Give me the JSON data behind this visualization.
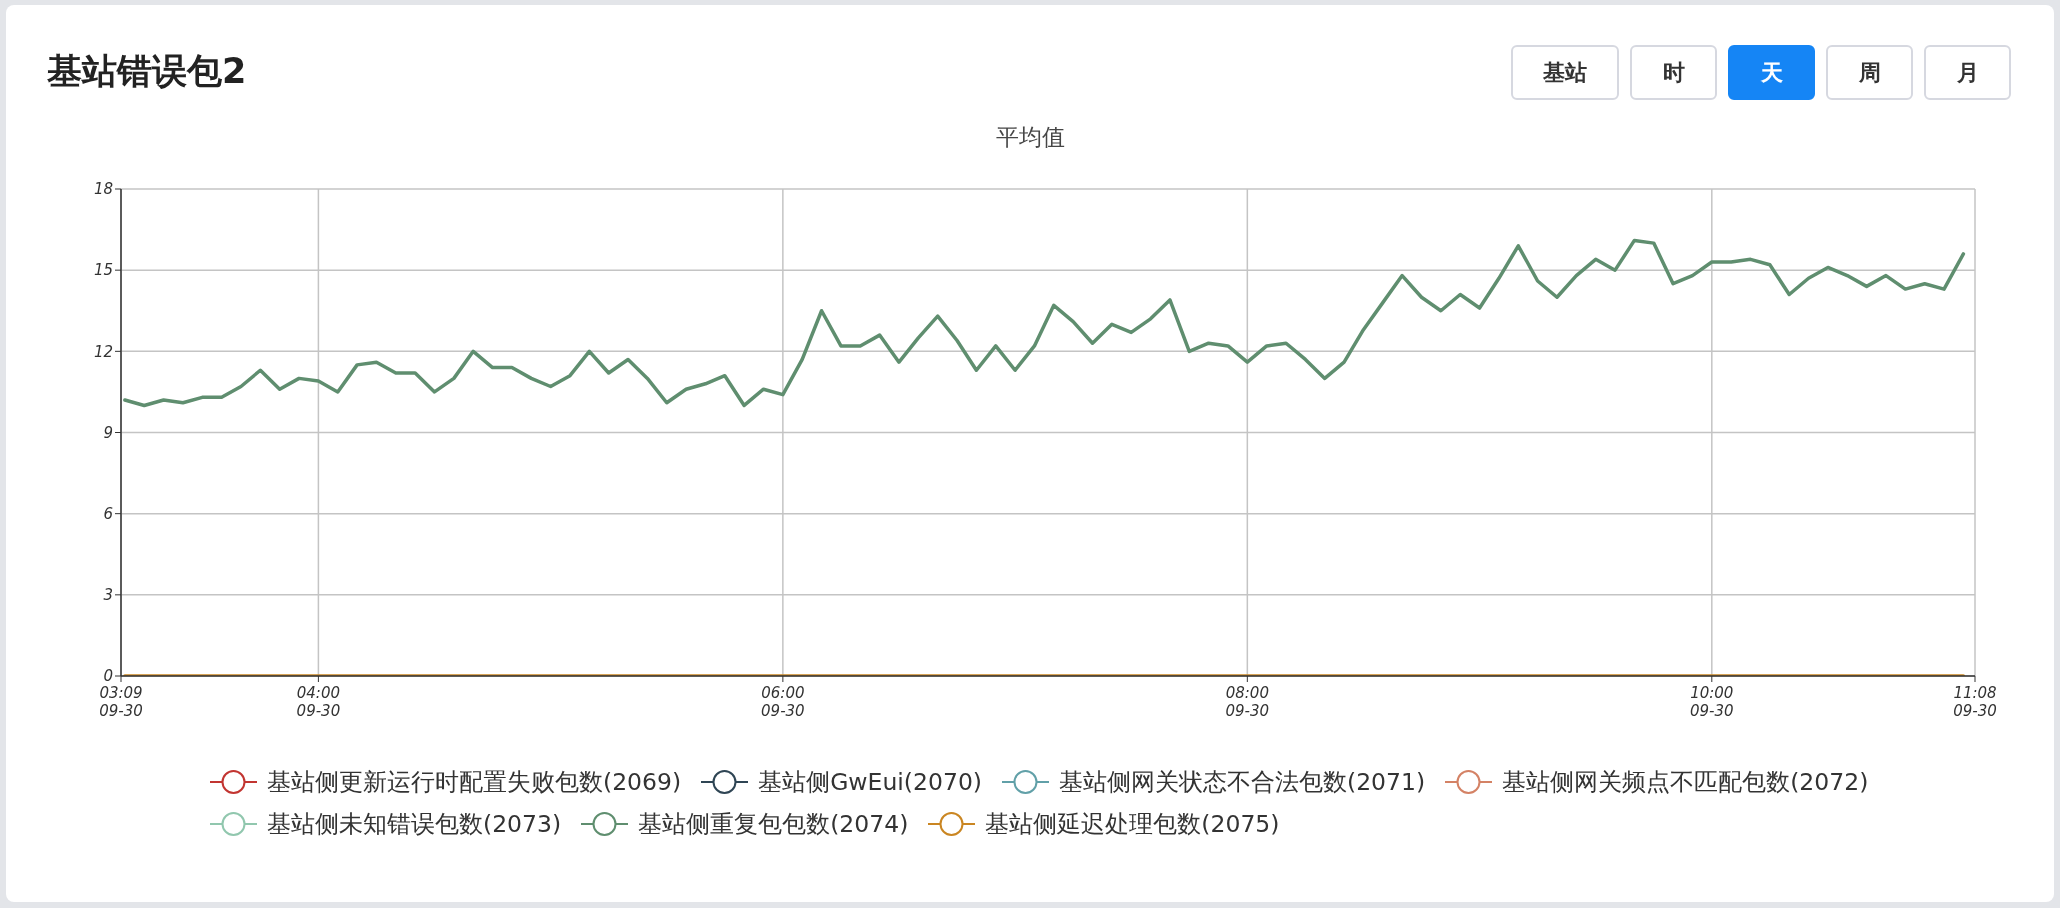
{
  "chart_data": {
    "type": "line",
    "title": "基站错误包2",
    "subtitle": "平均值",
    "annotations": [
      "基站",
      "时",
      "天",
      "周",
      "月"
    ],
    "x": [
      "--09-30T03:10",
      "--09-30T03:15",
      "--09-30T03:20",
      "--09-30T03:25",
      "--09-30T03:30",
      "--09-30T03:35",
      "--09-30T03:40",
      "--09-30T03:45",
      "--09-30T03:50",
      "--09-30T03:55",
      "--09-30T04:00",
      "--09-30T04:05",
      "--09-30T04:10",
      "--09-30T04:15",
      "--09-30T04:20",
      "--09-30T04:25",
      "--09-30T04:30",
      "--09-30T04:35",
      "--09-30T04:40",
      "--09-30T04:45",
      "--09-30T04:50",
      "--09-30T04:55",
      "--09-30T05:00",
      "--09-30T05:05",
      "--09-30T05:10",
      "--09-30T05:15",
      "--09-30T05:20",
      "--09-30T05:25",
      "--09-30T05:30",
      "--09-30T05:35",
      "--09-30T05:40",
      "--09-30T05:45",
      "--09-30T05:50",
      "--09-30T05:55",
      "--09-30T06:00",
      "--09-30T06:05",
      "--09-30T06:10",
      "--09-30T06:15",
      "--09-30T06:20",
      "--09-30T06:25",
      "--09-30T06:30",
      "--09-30T06:35",
      "--09-30T06:40",
      "--09-30T06:45",
      "--09-30T06:50",
      "--09-30T06:55",
      "--09-30T07:00",
      "--09-30T07:05",
      "--09-30T07:10",
      "--09-30T07:15",
      "--09-30T07:20",
      "--09-30T07:25",
      "--09-30T07:30",
      "--09-30T07:35",
      "--09-30T07:40",
      "--09-30T07:45",
      "--09-30T07:50",
      "--09-30T07:55",
      "--09-30T08:00",
      "--09-30T08:05",
      "--09-30T08:10",
      "--09-30T08:15",
      "--09-30T08:20",
      "--09-30T08:25",
      "--09-30T08:30",
      "--09-30T08:35",
      "--09-30T08:40",
      "--09-30T08:45",
      "--09-30T08:50",
      "--09-30T08:55",
      "--09-30T09:00",
      "--09-30T09:05",
      "--09-30T09:10",
      "--09-30T09:15",
      "--09-30T09:20",
      "--09-30T09:25",
      "--09-30T09:30",
      "--09-30T09:35",
      "--09-30T09:40",
      "--09-30T09:45",
      "--09-30T09:50",
      "--09-30T09:55",
      "--09-30T10:00",
      "--09-30T10:05",
      "--09-30T10:10",
      "--09-30T10:15",
      "--09-30T10:20",
      "--09-30T10:25",
      "--09-30T10:30",
      "--09-30T10:35",
      "--09-30T10:40",
      "--09-30T10:45",
      "--09-30T10:50",
      "--09-30T10:55",
      "--09-30T11:00",
      "--09-30T11:05"
    ],
    "xlim": [
      "--09-30T03:09",
      "--09-30T11:08"
    ],
    "xticks": [
      {
        "value": "--09-30T03:09",
        "label": "03:09\n09-30"
      },
      {
        "value": "--09-30T04:00",
        "label": "04:00\n09-30"
      },
      {
        "value": "--09-30T06:00",
        "label": "06:00\n09-30"
      },
      {
        "value": "--09-30T08:00",
        "label": "08:00\n09-30"
      },
      {
        "value": "--09-30T10:00",
        "label": "10:00\n09-30"
      },
      {
        "value": "--09-30T11:08",
        "label": "11:08\n09-30"
      }
    ],
    "ylim": [
      0,
      18
    ],
    "yticks": [
      0,
      3,
      6,
      9,
      12,
      15,
      18
    ],
    "grid": true,
    "legend": "bottom",
    "marker": "none",
    "series": [
      {
        "name": "基站侧更新运行时配置失败包数(2069)",
        "color": "#c23531",
        "values": [
          null,
          null,
          null,
          null,
          null,
          null,
          null,
          null,
          null,
          null,
          null,
          null,
          null,
          null,
          null,
          null,
          null,
          null,
          null,
          null,
          null,
          null,
          null,
          null,
          null,
          null,
          null,
          null,
          null,
          null,
          null,
          null,
          null,
          null,
          null,
          null,
          null,
          null,
          null,
          null,
          null,
          null,
          null,
          null,
          null,
          null,
          null,
          null,
          null,
          null,
          null,
          null,
          null,
          null,
          null,
          null,
          null,
          null,
          null,
          null,
          null,
          null,
          null,
          null,
          null,
          null,
          null,
          null,
          null,
          null,
          null,
          null,
          null,
          null,
          null,
          null,
          null,
          null,
          null,
          null,
          null,
          null,
          null,
          null,
          null,
          null,
          null,
          null,
          null,
          null,
          null,
          null,
          null,
          null,
          null,
          null
        ]
      },
      {
        "name": "基站侧GwEui(2070)",
        "color": "#2f4554",
        "values": [
          null,
          null,
          null,
          null,
          null,
          null,
          null,
          null,
          null,
          null,
          null,
          null,
          null,
          null,
          null,
          null,
          null,
          null,
          null,
          null,
          null,
          null,
          null,
          null,
          null,
          null,
          null,
          null,
          null,
          null,
          null,
          null,
          null,
          null,
          null,
          null,
          null,
          null,
          null,
          null,
          null,
          null,
          null,
          null,
          null,
          null,
          null,
          null,
          null,
          null,
          null,
          null,
          null,
          null,
          null,
          null,
          null,
          null,
          null,
          null,
          null,
          null,
          null,
          null,
          null,
          null,
          null,
          null,
          null,
          null,
          null,
          null,
          null,
          null,
          null,
          null,
          null,
          null,
          null,
          null,
          null,
          null,
          null,
          null,
          null,
          null,
          null,
          null,
          null,
          null,
          null,
          null,
          null,
          null,
          null,
          null
        ]
      },
      {
        "name": "基站侧网关状态不合法包数(2071)",
        "color": "#61a0a8",
        "values": [
          null,
          null,
          null,
          null,
          null,
          null,
          null,
          null,
          null,
          null,
          null,
          null,
          null,
          null,
          null,
          null,
          null,
          null,
          null,
          null,
          null,
          null,
          null,
          null,
          null,
          null,
          null,
          null,
          null,
          null,
          null,
          null,
          null,
          null,
          null,
          null,
          null,
          null,
          null,
          null,
          null,
          null,
          null,
          null,
          null,
          null,
          null,
          null,
          null,
          null,
          null,
          null,
          null,
          null,
          null,
          null,
          null,
          null,
          null,
          null,
          null,
          null,
          null,
          null,
          null,
          null,
          null,
          null,
          null,
          null,
          null,
          null,
          null,
          null,
          null,
          null,
          null,
          null,
          null,
          null,
          null,
          null,
          null,
          null,
          null,
          null,
          null,
          null,
          null,
          null,
          null,
          null,
          null,
          null,
          null,
          null
        ]
      },
      {
        "name": "基站侧网关频点不匹配包数(2072)",
        "color": "#d48265",
        "values": [
          null,
          null,
          null,
          null,
          null,
          null,
          null,
          null,
          null,
          null,
          null,
          null,
          null,
          null,
          null,
          null,
          null,
          null,
          null,
          null,
          null,
          null,
          null,
          null,
          null,
          null,
          null,
          null,
          null,
          null,
          null,
          null,
          null,
          null,
          null,
          null,
          null,
          null,
          null,
          null,
          null,
          null,
          null,
          null,
          null,
          null,
          null,
          null,
          null,
          null,
          null,
          null,
          null,
          null,
          null,
          null,
          null,
          null,
          null,
          null,
          null,
          null,
          null,
          null,
          null,
          null,
          null,
          null,
          null,
          null,
          null,
          null,
          null,
          null,
          null,
          null,
          null,
          null,
          null,
          null,
          null,
          null,
          null,
          null,
          null,
          null,
          null,
          null,
          null,
          null,
          null,
          null,
          null,
          null,
          null,
          null
        ]
      },
      {
        "name": "基站侧未知错误包数(2073)",
        "color": "#91c7ae",
        "values": [
          null,
          null,
          null,
          null,
          null,
          null,
          null,
          null,
          null,
          null,
          null,
          null,
          null,
          null,
          null,
          null,
          null,
          null,
          null,
          null,
          null,
          null,
          null,
          null,
          null,
          null,
          null,
          null,
          null,
          null,
          null,
          null,
          null,
          null,
          null,
          null,
          null,
          null,
          null,
          null,
          null,
          null,
          null,
          null,
          null,
          null,
          null,
          null,
          null,
          null,
          null,
          null,
          null,
          null,
          null,
          null,
          null,
          null,
          null,
          null,
          null,
          null,
          null,
          null,
          null,
          null,
          null,
          null,
          null,
          null,
          null,
          null,
          null,
          null,
          null,
          null,
          null,
          null,
          null,
          null,
          null,
          null,
          null,
          null,
          null,
          null,
          null,
          null,
          null,
          null,
          null,
          null,
          null,
          null,
          null,
          null
        ]
      },
      {
        "name": "基站侧重复包包数(2074)",
        "color": "#5f8e6f",
        "values": [
          10.2,
          10.0,
          10.2,
          10.1,
          10.3,
          10.3,
          10.7,
          11.3,
          10.6,
          11.0,
          10.9,
          10.5,
          11.5,
          11.6,
          11.2,
          11.2,
          10.5,
          11.0,
          12.0,
          11.4,
          11.4,
          11.0,
          10.7,
          11.1,
          12.0,
          11.2,
          11.7,
          11.0,
          10.1,
          10.6,
          10.8,
          11.1,
          10.0,
          10.6,
          10.4,
          11.7,
          13.5,
          12.2,
          12.2,
          12.6,
          11.6,
          12.5,
          13.3,
          12.4,
          11.3,
          12.2,
          11.3,
          12.2,
          13.7,
          13.1,
          12.3,
          13.0,
          12.7,
          13.2,
          13.9,
          12.0,
          12.3,
          12.2,
          11.6,
          12.2,
          12.3,
          11.7,
          11.0,
          11.6,
          12.8,
          13.8,
          14.8,
          14.0,
          13.5,
          14.1,
          13.6,
          14.7,
          15.9,
          14.6,
          14.0,
          14.8,
          15.4,
          15.0,
          16.1,
          16.0,
          14.5,
          14.8,
          15.3,
          15.3,
          15.4,
          15.2,
          14.1,
          14.7,
          15.1,
          14.8,
          14.4,
          14.8,
          14.3,
          14.5,
          14.3,
          15.6
        ]
      },
      {
        "name": "基站侧延迟处理包数(2075)",
        "color": "#ca8622",
        "values": [
          0,
          0,
          0,
          0,
          0,
          0,
          0,
          0,
          0,
          0,
          0,
          0,
          0,
          0,
          0,
          0,
          0,
          0,
          0,
          0,
          0,
          0,
          0,
          0,
          0,
          0,
          0,
          0,
          0,
          0,
          0,
          0,
          0,
          0,
          0,
          0,
          0,
          0,
          0,
          0,
          0,
          0,
          0,
          0,
          0,
          0,
          0,
          0,
          0,
          0,
          0,
          0,
          0,
          0,
          0,
          0,
          0,
          0,
          0,
          0,
          0,
          0,
          0,
          0,
          0,
          0,
          0,
          0,
          0,
          0,
          0,
          0,
          0,
          0,
          0,
          0,
          0,
          0,
          0,
          0,
          0,
          0,
          0,
          0,
          0,
          0,
          0,
          0,
          0,
          0,
          0,
          0,
          0,
          0,
          0,
          0
        ]
      }
    ]
  }
}
